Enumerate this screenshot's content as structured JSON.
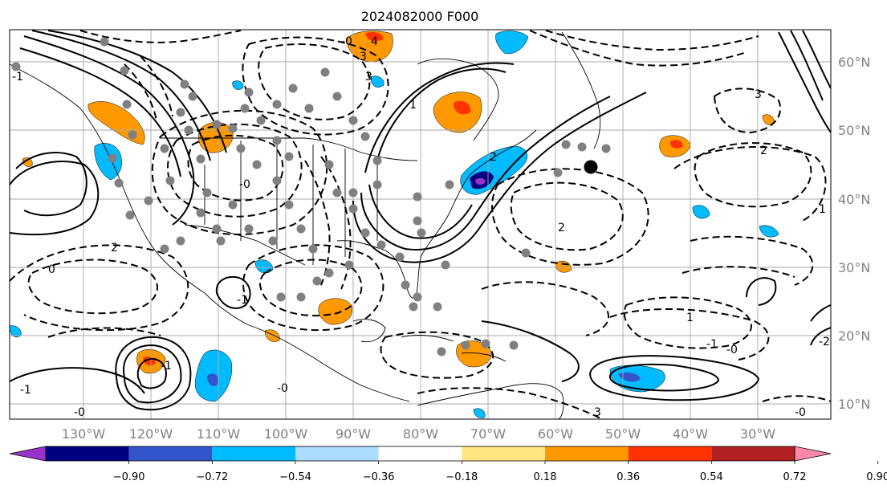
{
  "title": "2024082000 F000",
  "lon_labels": [
    "130°W",
    "120°W",
    "110°W",
    "100°W",
    "90°W",
    "80°W",
    "70°W",
    "60°W",
    "50°W",
    "40°W",
    "30°W"
  ],
  "lat_labels": [
    "60°N",
    "50°N",
    "40°N",
    "30°N",
    "20°N",
    "10°N"
  ],
  "colorbar": {
    "tick_labels": [
      "−0.90",
      "−0.72",
      "−0.54",
      "−0.36",
      "−0.18",
      "0.18",
      "0.36",
      "0.54",
      "0.72",
      "0.90"
    ],
    "colors": [
      "#9933cc",
      "#000080",
      "#3355cc",
      "#00bbff",
      "#aaddff",
      "#ffffff",
      "#ffe680",
      "#ff9900",
      "#ff3300",
      "#b22222",
      "#ff88aa"
    ]
  },
  "contour_labels": [
    "3",
    "4",
    "3",
    "3",
    "2",
    "2",
    "-0",
    "2",
    "1",
    "1",
    "-2",
    "-1",
    "-0",
    "-1",
    "-0",
    "-0",
    "3",
    "2",
    "-0",
    "1",
    "-1",
    "-1",
    "-1",
    "-0",
    "0"
  ]
}
